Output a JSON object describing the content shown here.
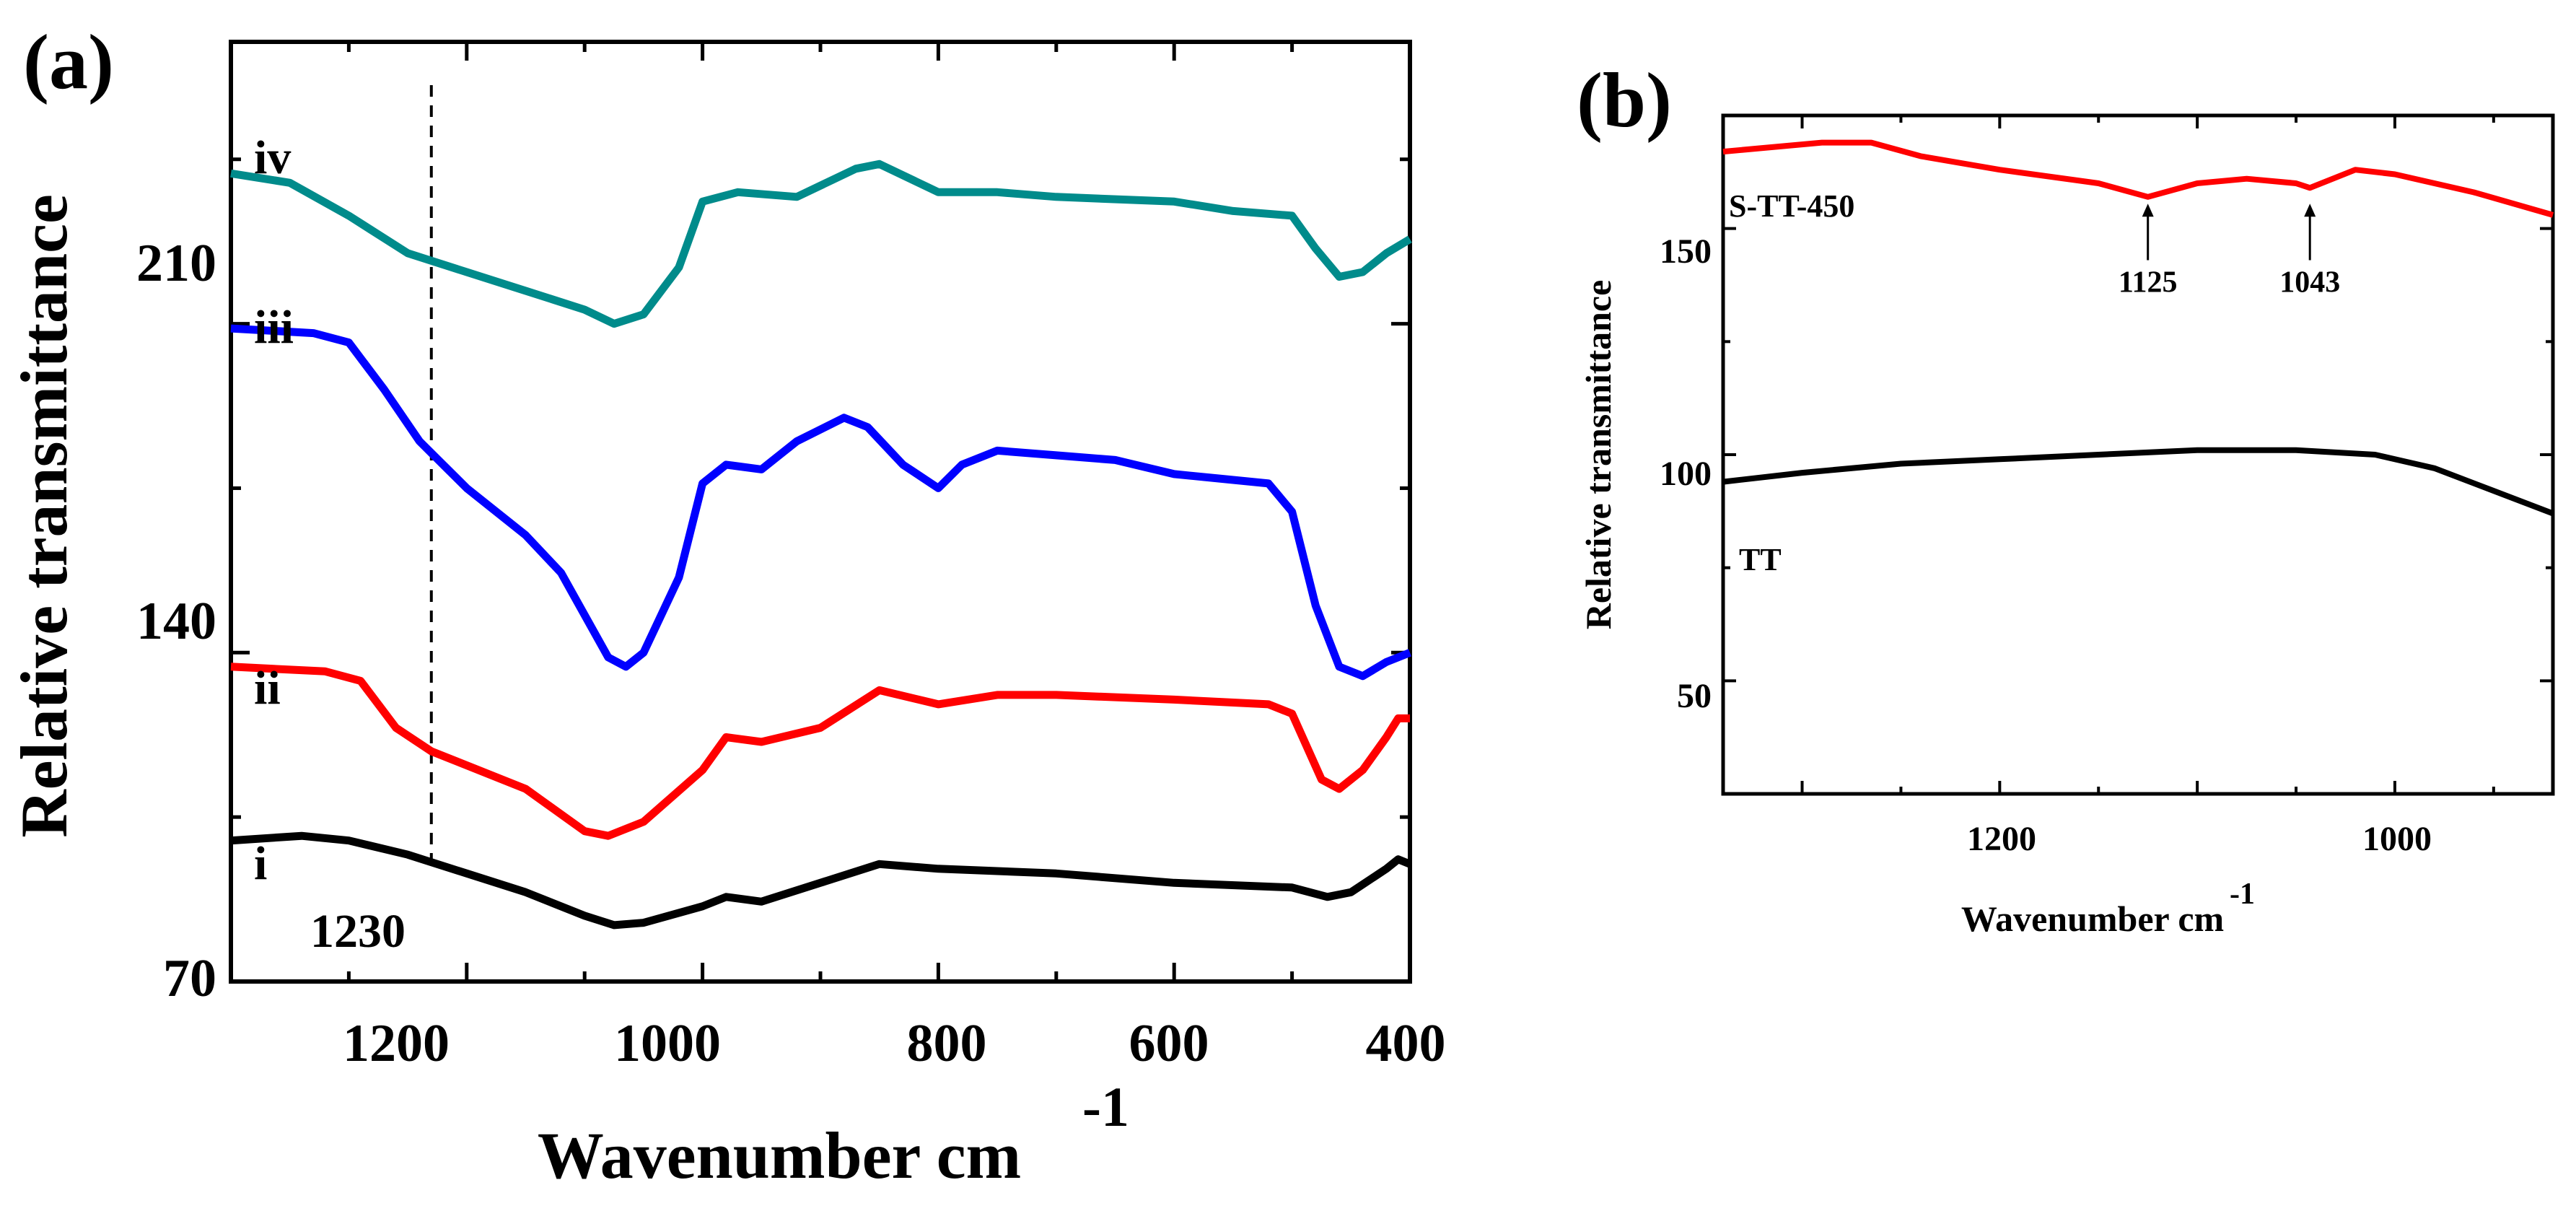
{
  "chart_data": [
    {
      "panel": "(a)",
      "type": "line",
      "xlabel": "Wavenumber cm",
      "xlabel_superscript": "-1",
      "ylabel": "Relative transmittance",
      "xlim": [
        1400,
        400
      ],
      "ylim": [
        70,
        270
      ],
      "x_ticks": [
        "1200",
        "1000",
        "800",
        "600",
        "400"
      ],
      "y_ticks": [
        "70",
        "140",
        "210"
      ],
      "reference_line": {
        "x": 1230,
        "label": "1230",
        "style": "dashed"
      },
      "series": [
        {
          "name": "i",
          "color": "#000000",
          "points": [
            [
              1400,
              100
            ],
            [
              1340,
              101
            ],
            [
              1300,
              100
            ],
            [
              1250,
              97
            ],
            [
              1200,
              93
            ],
            [
              1150,
              89
            ],
            [
              1100,
              84
            ],
            [
              1075,
              82
            ],
            [
              1050,
              82.5
            ],
            [
              1000,
              86
            ],
            [
              980,
              88
            ],
            [
              950,
              87
            ],
            [
              900,
              91
            ],
            [
              850,
              95
            ],
            [
              800,
              94
            ],
            [
              700,
              93
            ],
            [
              600,
              91
            ],
            [
              500,
              90
            ],
            [
              470,
              88
            ],
            [
              450,
              89
            ],
            [
              420,
              94
            ],
            [
              410,
              96
            ],
            [
              400,
              95
            ]
          ]
        },
        {
          "name": "ii",
          "color": "#ff0000",
          "points": [
            [
              1400,
              137
            ],
            [
              1320,
              136
            ],
            [
              1290,
              134
            ],
            [
              1260,
              124
            ],
            [
              1230,
              119
            ],
            [
              1200,
              116
            ],
            [
              1150,
              111
            ],
            [
              1100,
              102
            ],
            [
              1080,
              101
            ],
            [
              1050,
              104
            ],
            [
              1000,
              115
            ],
            [
              980,
              122
            ],
            [
              950,
              121
            ],
            [
              900,
              124
            ],
            [
              850,
              132
            ],
            [
              800,
              129
            ],
            [
              750,
              131
            ],
            [
              700,
              131
            ],
            [
              600,
              130
            ],
            [
              520,
              129
            ],
            [
              500,
              127
            ],
            [
              475,
              113
            ],
            [
              460,
              111
            ],
            [
              440,
              115
            ],
            [
              420,
              122
            ],
            [
              410,
              126
            ],
            [
              400,
              126
            ]
          ]
        },
        {
          "name": "iii",
          "color": "#0000ff",
          "points": [
            [
              1400,
              209
            ],
            [
              1330,
              208
            ],
            [
              1300,
              206
            ],
            [
              1270,
              196
            ],
            [
              1240,
              185
            ],
            [
              1200,
              175
            ],
            [
              1150,
              165
            ],
            [
              1120,
              157
            ],
            [
              1100,
              148
            ],
            [
              1080,
              139
            ],
            [
              1065,
              137
            ],
            [
              1050,
              140
            ],
            [
              1020,
              156
            ],
            [
              1000,
              176
            ],
            [
              980,
              180
            ],
            [
              950,
              179
            ],
            [
              920,
              185
            ],
            [
              880,
              190
            ],
            [
              860,
              188
            ],
            [
              830,
              180
            ],
            [
              800,
              175
            ],
            [
              780,
              180
            ],
            [
              750,
              183
            ],
            [
              700,
              182
            ],
            [
              650,
              181
            ],
            [
              600,
              178
            ],
            [
              560,
              177
            ],
            [
              520,
              176
            ],
            [
              500,
              170
            ],
            [
              480,
              150
            ],
            [
              460,
              137
            ],
            [
              440,
              135
            ],
            [
              420,
              138
            ],
            [
              400,
              140
            ]
          ]
        },
        {
          "name": "iv",
          "color": "#008b8b",
          "points": [
            [
              1400,
              242
            ],
            [
              1350,
              240
            ],
            [
              1300,
              233
            ],
            [
              1250,
              225
            ],
            [
              1200,
              221
            ],
            [
              1150,
              217
            ],
            [
              1100,
              213
            ],
            [
              1075,
              210
            ],
            [
              1050,
              212
            ],
            [
              1020,
              222
            ],
            [
              1000,
              236
            ],
            [
              970,
              238
            ],
            [
              920,
              237
            ],
            [
              870,
              243
            ],
            [
              850,
              244
            ],
            [
              800,
              238
            ],
            [
              750,
              238
            ],
            [
              700,
              237
            ],
            [
              600,
              236
            ],
            [
              550,
              234
            ],
            [
              500,
              233
            ],
            [
              480,
              226
            ],
            [
              460,
              220
            ],
            [
              440,
              221
            ],
            [
              420,
              225
            ],
            [
              400,
              228
            ]
          ]
        }
      ]
    },
    {
      "panel": "(b)",
      "type": "line",
      "xlabel": "Wavenumber cm",
      "xlabel_superscript": "-1",
      "ylabel": "Relative transmittance",
      "xlim": [
        1340,
        920
      ],
      "ylim": [
        25,
        175
      ],
      "x_ticks": [
        "1200",
        "1000"
      ],
      "y_ticks": [
        "50",
        "100",
        "150"
      ],
      "series": [
        {
          "name": "S-TT-450",
          "color": "#ff0000",
          "points": [
            [
              1340,
              167
            ],
            [
              1290,
              169
            ],
            [
              1265,
              169
            ],
            [
              1240,
              166
            ],
            [
              1200,
              163
            ],
            [
              1150,
              160
            ],
            [
              1125,
              157
            ],
            [
              1100,
              160
            ],
            [
              1075,
              161
            ],
            [
              1050,
              160
            ],
            [
              1043,
              159
            ],
            [
              1020,
              163
            ],
            [
              1000,
              162
            ],
            [
              960,
              158
            ],
            [
              920,
              153
            ]
          ]
        },
        {
          "name": "TT",
          "color": "#000000",
          "points": [
            [
              1340,
              94
            ],
            [
              1300,
              96
            ],
            [
              1250,
              98
            ],
            [
              1200,
              99
            ],
            [
              1150,
              100
            ],
            [
              1100,
              101
            ],
            [
              1050,
              101
            ],
            [
              1010,
              100
            ],
            [
              980,
              97
            ],
            [
              950,
              92
            ],
            [
              920,
              87
            ]
          ]
        }
      ],
      "annotations": [
        {
          "x": 1125,
          "label": "1125"
        },
        {
          "x": 1043,
          "label": "1043"
        }
      ]
    }
  ]
}
